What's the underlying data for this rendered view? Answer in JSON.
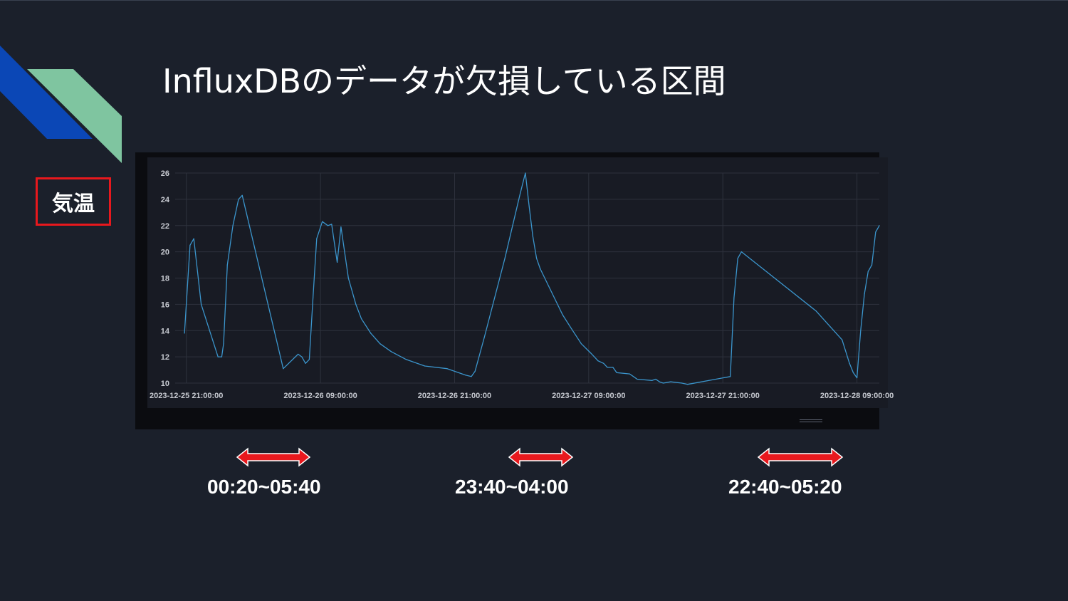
{
  "slide": {
    "title": "InfluxDBのデータが欠損している区間",
    "field_label": "気温"
  },
  "colors": {
    "background": "#1b202b",
    "line": "#3b95cc",
    "highlight_border": "#e8181d",
    "arrow": "#e8181d",
    "deco_blue": "#0b47b6",
    "deco_green": "#7fc5a0"
  },
  "chart_data": {
    "type": "line",
    "title": "",
    "xlabel": "",
    "ylabel": "",
    "ylim": [
      10,
      26
    ],
    "yticks": [
      26,
      24,
      22,
      20,
      18,
      16,
      14,
      12,
      10
    ],
    "xlim": [
      "2023-12-25 20:00",
      "2023-12-28 11:00"
    ],
    "xticks": [
      "2023-12-25 21:00:00",
      "2023-12-26 09:00:00",
      "2023-12-26 21:00:00",
      "2023-12-27 09:00:00",
      "2023-12-27 21:00:00",
      "2023-12-28 09:00:00"
    ],
    "grid": true,
    "series": [
      {
        "points": [
          [
            "2023-12-25 20:50",
            13.8
          ],
          [
            "2023-12-25 21:20",
            20.5
          ],
          [
            "2023-12-25 21:40",
            21.0
          ],
          [
            "2023-12-25 22:20",
            16.0
          ],
          [
            "2023-12-25 23:50",
            12.0
          ],
          [
            "2023-12-26 00:10",
            12.0
          ],
          [
            "2023-12-26 00:20",
            13.0
          ],
          [
            "2023-12-26 00:40",
            19.0
          ],
          [
            "2023-12-26 01:10",
            22.0
          ],
          [
            "2023-12-26 01:40",
            24.0
          ],
          [
            "2023-12-26 02:00",
            24.3
          ],
          [
            "2023-12-26 05:40",
            11.1
          ],
          [
            "2023-12-26 07:00",
            12.2
          ],
          [
            "2023-12-26 07:20",
            12.0
          ],
          [
            "2023-12-26 07:40",
            11.5
          ],
          [
            "2023-12-26 08:00",
            11.8
          ],
          [
            "2023-12-26 08:20",
            16.5
          ],
          [
            "2023-12-26 08:40",
            21.0
          ],
          [
            "2023-12-26 09:10",
            22.3
          ],
          [
            "2023-12-26 09:40",
            22.0
          ],
          [
            "2023-12-26 10:00",
            22.1
          ],
          [
            "2023-12-26 10:30",
            19.2
          ],
          [
            "2023-12-26 10:50",
            21.9
          ],
          [
            "2023-12-26 11:30",
            18.0
          ],
          [
            "2023-12-26 12:10",
            16.0
          ],
          [
            "2023-12-26 12:40",
            14.9
          ],
          [
            "2023-12-26 13:30",
            13.8
          ],
          [
            "2023-12-26 14:20",
            13.0
          ],
          [
            "2023-12-26 15:20",
            12.4
          ],
          [
            "2023-12-26 16:40",
            11.8
          ],
          [
            "2023-12-26 18:20",
            11.3
          ],
          [
            "2023-12-26 20:20",
            11.1
          ],
          [
            "2023-12-26 22:00",
            10.6
          ],
          [
            "2023-12-26 22:30",
            10.5
          ],
          [
            "2023-12-26 22:50",
            10.9
          ],
          [
            "2023-12-26 23:40",
            13.5
          ],
          [
            "2023-12-27 01:30",
            19.5
          ],
          [
            "2023-12-27 02:50",
            24.3
          ],
          [
            "2023-12-27 03:20",
            26.0
          ],
          [
            "2023-12-27 03:40",
            23.5
          ],
          [
            "2023-12-27 04:00",
            21.2
          ],
          [
            "2023-12-27 04:20",
            19.5
          ],
          [
            "2023-12-27 04:40",
            18.7
          ],
          [
            "2023-12-27 06:40",
            15.2
          ],
          [
            "2023-12-27 07:20",
            14.3
          ],
          [
            "2023-12-27 08:20",
            13.0
          ],
          [
            "2023-12-27 09:10",
            12.3
          ],
          [
            "2023-12-27 09:30",
            12.0
          ],
          [
            "2023-12-27 09:50",
            11.7
          ],
          [
            "2023-12-27 10:20",
            11.5
          ],
          [
            "2023-12-27 10:40",
            11.2
          ],
          [
            "2023-12-27 11:10",
            11.2
          ],
          [
            "2023-12-27 11:30",
            10.8
          ],
          [
            "2023-12-27 12:40",
            10.7
          ],
          [
            "2023-12-27 13:20",
            10.3
          ],
          [
            "2023-12-27 14:40",
            10.2
          ],
          [
            "2023-12-27 15:00",
            10.3
          ],
          [
            "2023-12-27 15:20",
            10.1
          ],
          [
            "2023-12-27 15:40",
            10.0
          ],
          [
            "2023-12-27 16:20",
            10.1
          ],
          [
            "2023-12-27 17:20",
            10.0
          ],
          [
            "2023-12-27 17:50",
            9.9
          ],
          [
            "2023-12-27 21:40",
            10.5
          ],
          [
            "2023-12-27 22:00",
            16.5
          ],
          [
            "2023-12-27 22:20",
            19.5
          ],
          [
            "2023-12-27 22:40",
            20.0
          ],
          [
            "2023-12-28 05:20",
            15.5
          ],
          [
            "2023-12-28 07:40",
            13.3
          ],
          [
            "2023-12-28 08:20",
            11.5
          ],
          [
            "2023-12-28 08:40",
            10.8
          ],
          [
            "2023-12-28 09:00",
            10.4
          ],
          [
            "2023-12-28 09:20",
            14.0
          ],
          [
            "2023-12-28 09:40",
            16.8
          ],
          [
            "2023-12-28 10:00",
            18.5
          ],
          [
            "2023-12-28 10:20",
            19.0
          ],
          [
            "2023-12-28 10:40",
            21.5
          ],
          [
            "2023-12-28 11:00",
            22.0
          ]
        ]
      }
    ]
  },
  "missing_ranges": [
    {
      "label": "00:20~05:40"
    },
    {
      "label": "23:40~04:00"
    },
    {
      "label": "22:40~05:20"
    }
  ]
}
